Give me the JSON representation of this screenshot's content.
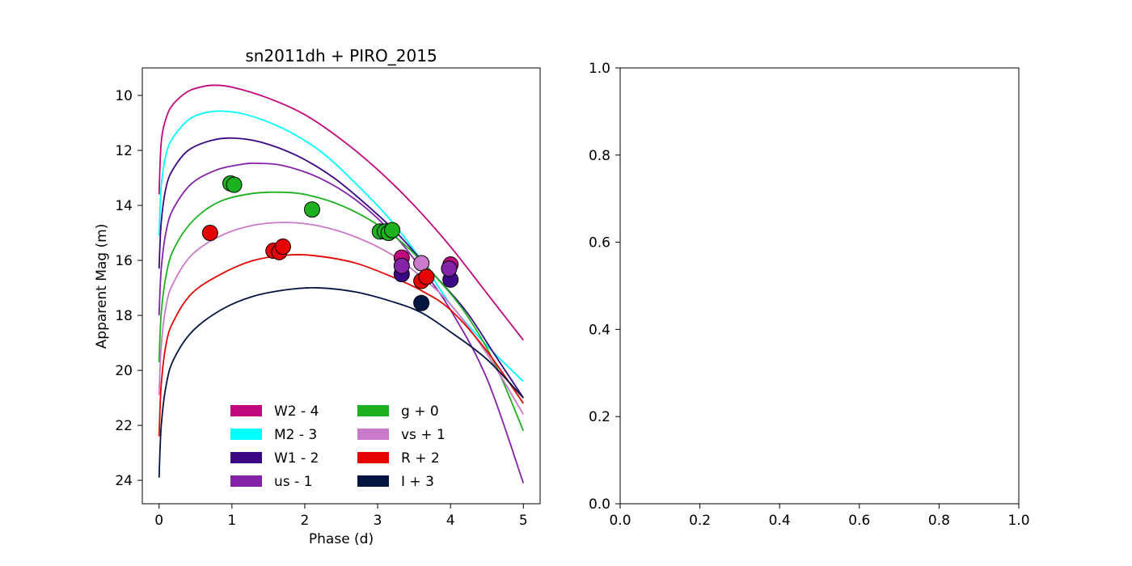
{
  "chart_data": [
    {
      "type": "line",
      "title": "sn2011dh + PIRO_2015",
      "xlabel": "Phase (d)",
      "ylabel": "Apparent Mag (m)",
      "xlim": [
        -0.23,
        5.23
      ],
      "ylim": [
        24.85,
        9.0
      ],
      "y_inverted": true,
      "xticks": [
        "0",
        "1",
        "2",
        "3",
        "4",
        "5"
      ],
      "yticks": [
        "10",
        "12",
        "14",
        "16",
        "18",
        "20",
        "22",
        "24"
      ],
      "legend": {
        "placement": "lower-center",
        "columns": 2
      },
      "series": [
        {
          "name": "W2 - 4",
          "color": "#c2077e",
          "curve": [
            [
              0,
              13.6
            ],
            [
              0.03,
              11.7
            ],
            [
              0.1,
              10.8
            ],
            [
              0.2,
              10.3
            ],
            [
              0.4,
              9.85
            ],
            [
              0.6,
              9.68
            ],
            [
              0.75,
              9.63
            ],
            [
              1.0,
              9.7
            ],
            [
              1.5,
              10.1
            ],
            [
              2.0,
              10.7
            ],
            [
              2.5,
              11.6
            ],
            [
              3.0,
              12.7
            ],
            [
              3.5,
              14.0
            ],
            [
              4.0,
              15.5
            ],
            [
              4.5,
              17.2
            ],
            [
              5.0,
              18.9
            ]
          ],
          "points": [
            [
              3.33,
              15.9
            ],
            [
              4.0,
              16.15
            ]
          ]
        },
        {
          "name": "M2 - 3",
          "color": "#00ffff",
          "curve": [
            [
              0,
              15.1
            ],
            [
              0.03,
              13.3
            ],
            [
              0.1,
              12.1
            ],
            [
              0.2,
              11.5
            ],
            [
              0.4,
              10.9
            ],
            [
              0.6,
              10.65
            ],
            [
              0.85,
              10.57
            ],
            [
              1.2,
              10.7
            ],
            [
              1.7,
              11.2
            ],
            [
              2.2,
              12.0
            ],
            [
              2.7,
              13.2
            ],
            [
              3.2,
              14.6
            ],
            [
              3.6,
              16.0
            ],
            [
              4.0,
              17.6
            ],
            [
              4.5,
              19.1
            ],
            [
              5.0,
              20.4
            ]
          ],
          "points": []
        },
        {
          "name": "W1 - 2",
          "color": "#3a0883",
          "curve": [
            [
              0,
              16.3
            ],
            [
              0.03,
              14.6
            ],
            [
              0.1,
              13.3
            ],
            [
              0.2,
              12.65
            ],
            [
              0.4,
              12.0
            ],
            [
              0.7,
              11.65
            ],
            [
              1.0,
              11.55
            ],
            [
              1.4,
              11.7
            ],
            [
              1.9,
              12.2
            ],
            [
              2.4,
              13.0
            ],
            [
              2.9,
              14.1
            ],
            [
              3.3,
              15.1
            ],
            [
              3.7,
              16.3
            ],
            [
              4.2,
              17.8
            ],
            [
              4.6,
              19.4
            ],
            [
              5.0,
              21.0
            ]
          ],
          "points": [
            [
              3.33,
              16.5
            ],
            [
              4.0,
              16.7
            ]
          ]
        },
        {
          "name": "us - 1",
          "color": "#8523a8",
          "curve": [
            [
              0,
              18.0
            ],
            [
              0.03,
              16.3
            ],
            [
              0.1,
              14.9
            ],
            [
              0.2,
              14.1
            ],
            [
              0.45,
              13.2
            ],
            [
              0.8,
              12.7
            ],
            [
              1.15,
              12.5
            ],
            [
              1.35,
              12.47
            ],
            [
              1.7,
              12.55
            ],
            [
              2.2,
              13.0
            ],
            [
              2.7,
              13.8
            ],
            [
              3.2,
              15.0
            ],
            [
              3.6,
              16.3
            ],
            [
              4.0,
              17.8
            ],
            [
              4.5,
              20.3
            ],
            [
              5.0,
              24.1
            ]
          ],
          "points": [
            [
              3.33,
              16.2
            ],
            [
              3.98,
              16.3
            ]
          ]
        },
        {
          "name": "g + 0",
          "color": "#1db120",
          "curve": [
            [
              0,
              19.7
            ],
            [
              0.03,
              17.9
            ],
            [
              0.1,
              16.5
            ],
            [
              0.2,
              15.6
            ],
            [
              0.45,
              14.6
            ],
            [
              0.8,
              13.9
            ],
            [
              1.2,
              13.6
            ],
            [
              1.6,
              13.52
            ],
            [
              2.0,
              13.6
            ],
            [
              2.5,
              14.0
            ],
            [
              3.0,
              14.7
            ],
            [
              3.4,
              15.5
            ],
            [
              3.8,
              16.6
            ],
            [
              4.2,
              17.9
            ],
            [
              4.6,
              19.7
            ],
            [
              5.0,
              22.2
            ]
          ],
          "points": [
            [
              0.98,
              13.2
            ],
            [
              1.03,
              13.25
            ],
            [
              2.1,
              14.15
            ],
            [
              3.03,
              14.95
            ],
            [
              3.1,
              14.95
            ],
            [
              3.15,
              15.0
            ],
            [
              3.2,
              14.9
            ]
          ]
        },
        {
          "name": "vs + 1",
          "color": "#c97ac8",
          "curve": [
            [
              0,
              20.9
            ],
            [
              0.03,
              19.1
            ],
            [
              0.1,
              17.6
            ],
            [
              0.2,
              16.8
            ],
            [
              0.45,
              15.8
            ],
            [
              0.85,
              15.1
            ],
            [
              1.3,
              14.72
            ],
            [
              1.75,
              14.62
            ],
            [
              2.2,
              14.75
            ],
            [
              2.7,
              15.15
            ],
            [
              3.2,
              15.8
            ],
            [
              3.6,
              16.6
            ],
            [
              4.0,
              17.6
            ],
            [
              4.5,
              19.4
            ],
            [
              5.0,
              21.6
            ]
          ],
          "points": [
            [
              3.6,
              16.1
            ]
          ]
        },
        {
          "name": "R + 2",
          "color": "#e50303",
          "curve": [
            [
              0,
              22.4
            ],
            [
              0.03,
              20.5
            ],
            [
              0.1,
              19.0
            ],
            [
              0.2,
              18.2
            ],
            [
              0.45,
              17.2
            ],
            [
              0.85,
              16.5
            ],
            [
              1.3,
              16.0
            ],
            [
              1.8,
              15.8
            ],
            [
              2.2,
              15.85
            ],
            [
              2.7,
              16.1
            ],
            [
              3.2,
              16.6
            ],
            [
              3.6,
              17.1
            ],
            [
              4.0,
              17.8
            ],
            [
              4.5,
              19.3
            ],
            [
              5.0,
              21.2
            ]
          ],
          "points": [
            [
              0.7,
              15.0
            ],
            [
              1.57,
              15.65
            ],
            [
              1.65,
              15.7
            ],
            [
              1.7,
              15.5
            ],
            [
              3.6,
              16.75
            ],
            [
              3.67,
              16.6
            ]
          ]
        },
        {
          "name": "I + 3",
          "color": "#021541",
          "curve": [
            [
              0,
              23.9
            ],
            [
              0.03,
              22.0
            ],
            [
              0.1,
              20.5
            ],
            [
              0.2,
              19.6
            ],
            [
              0.45,
              18.6
            ],
            [
              0.85,
              17.8
            ],
            [
              1.3,
              17.3
            ],
            [
              1.8,
              17.05
            ],
            [
              2.2,
              17.0
            ],
            [
              2.7,
              17.15
            ],
            [
              3.2,
              17.5
            ],
            [
              3.6,
              17.9
            ],
            [
              4.0,
              18.6
            ],
            [
              4.5,
              19.6
            ],
            [
              5.0,
              21.0
            ]
          ],
          "points": [
            [
              3.6,
              17.55
            ]
          ]
        }
      ]
    },
    {
      "type": "line",
      "title": "",
      "xlabel": "",
      "ylabel": "",
      "xlim": [
        0.0,
        1.0
      ],
      "ylim": [
        0.0,
        1.0
      ],
      "xticks": [
        "0.0",
        "0.2",
        "0.4",
        "0.6",
        "0.8",
        "1.0"
      ],
      "yticks": [
        "0.0",
        "0.2",
        "0.4",
        "0.6",
        "0.8",
        "1.0"
      ],
      "series": []
    }
  ]
}
